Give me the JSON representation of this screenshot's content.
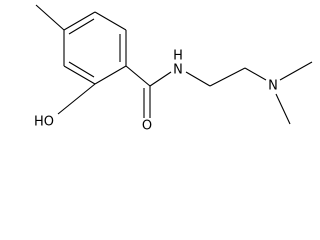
{
  "atoms": [
    {
      "label": "HO"
    },
    {
      "label": "O"
    },
    {
      "label": "H"
    },
    {
      "label": "N"
    },
    {
      "label": "N"
    }
  ]
}
